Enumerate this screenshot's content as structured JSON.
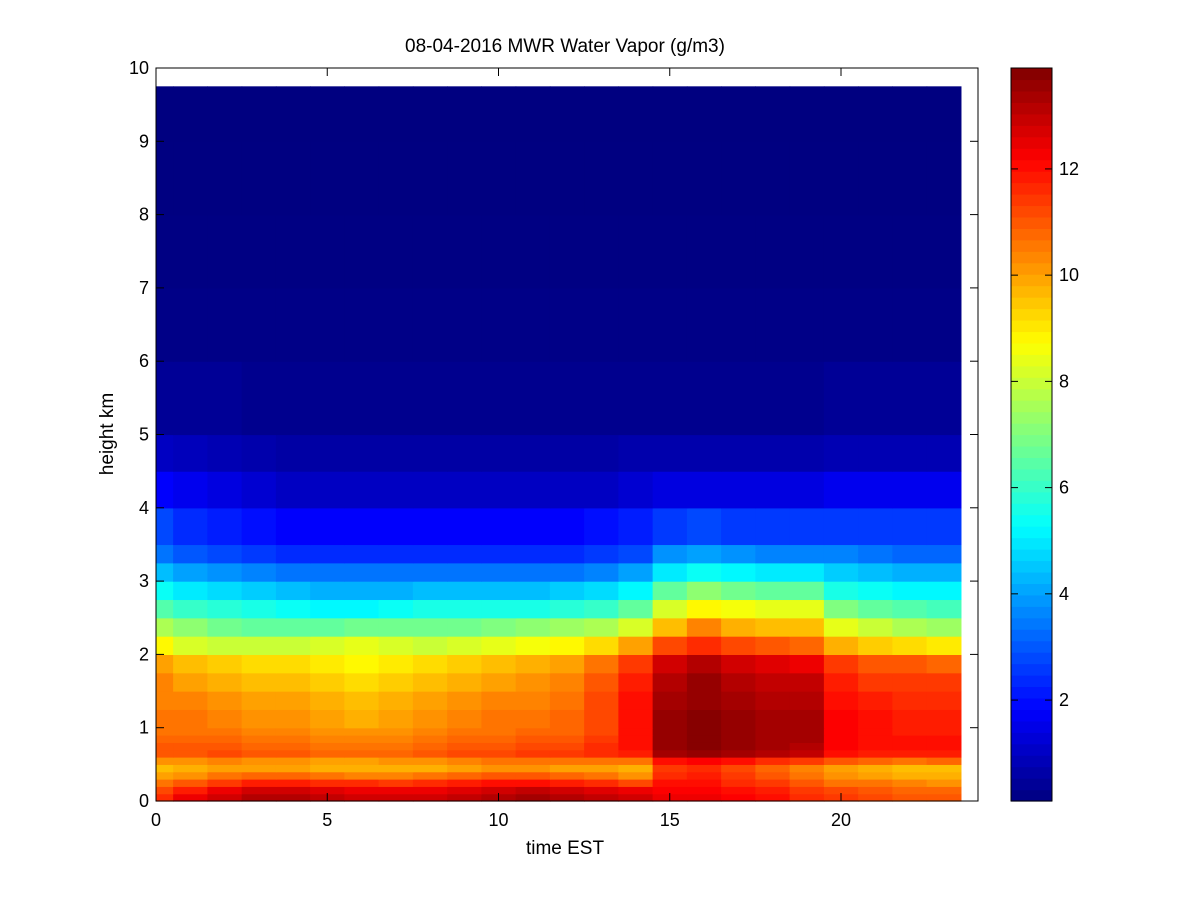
{
  "chart_data": {
    "type": "heatmap",
    "title": "08-04-2016 MWR Water Vapor (g/m3)",
    "xlabel": "time EST",
    "ylabel": "height km",
    "xlim": [
      0,
      24
    ],
    "ylim": [
      0,
      10
    ],
    "x_ticks": [
      0,
      5,
      10,
      15,
      20
    ],
    "y_ticks": [
      0,
      1,
      2,
      3,
      4,
      5,
      6,
      7,
      8,
      9,
      10
    ],
    "colorbar": {
      "colormap": "jet",
      "range": [
        0.1,
        13.9
      ],
      "ticks": [
        2,
        4,
        6,
        8,
        10,
        12
      ]
    },
    "data_extent": {
      "x": [
        0,
        23.5
      ],
      "y": [
        0,
        9.75
      ]
    },
    "x": [
      0,
      1,
      2,
      3,
      4,
      5,
      6,
      7,
      8,
      9,
      10,
      11,
      12,
      13,
      14,
      15,
      16,
      17,
      18,
      19,
      20,
      21,
      22,
      23
    ],
    "height_levels": [
      0.0,
      0.1,
      0.2,
      0.3,
      0.4,
      0.5,
      0.6,
      0.7,
      0.8,
      0.9,
      1.0,
      1.25,
      1.5,
      1.75,
      2.0,
      2.25,
      2.5,
      2.75,
      3.0,
      3.25,
      3.5,
      4.0,
      4.5,
      5.0,
      6.0,
      7.0,
      8.0,
      9.0,
      9.75
    ],
    "values": [
      [
        11.6,
        12.4,
        12.8,
        13.2,
        13.2,
        13.0,
        12.8,
        12.8,
        12.8,
        13.0,
        13.2,
        13.4,
        13.2,
        13.0,
        12.8,
        12.4,
        12.4,
        12.2,
        12.0,
        11.6,
        11.4,
        11.2,
        11.0,
        11.0
      ],
      [
        11.2,
        11.8,
        12.4,
        12.8,
        12.8,
        12.6,
        12.4,
        12.4,
        12.4,
        12.6,
        12.8,
        13.0,
        12.8,
        12.6,
        12.4,
        12.2,
        12.2,
        12.0,
        11.8,
        11.4,
        11.2,
        11.0,
        10.8,
        10.8
      ],
      [
        10.6,
        11.0,
        11.4,
        11.8,
        11.8,
        11.6,
        11.6,
        11.4,
        11.6,
        11.8,
        12.0,
        12.0,
        11.8,
        11.6,
        11.2,
        12.0,
        12.0,
        11.6,
        11.4,
        11.0,
        10.6,
        10.6,
        10.4,
        10.2
      ],
      [
        10.0,
        10.2,
        10.6,
        10.8,
        10.8,
        10.6,
        10.4,
        10.4,
        10.6,
        10.8,
        11.0,
        11.0,
        10.8,
        10.6,
        10.2,
        11.6,
        11.8,
        11.4,
        11.0,
        10.6,
        10.2,
        10.0,
        9.8,
        9.8
      ],
      [
        9.6,
        9.8,
        10.0,
        10.0,
        10.0,
        9.8,
        9.8,
        9.8,
        9.8,
        10.0,
        10.2,
        10.2,
        10.0,
        10.0,
        9.8,
        11.4,
        11.6,
        11.2,
        10.8,
        10.4,
        10.0,
        9.8,
        9.6,
        9.6
      ],
      [
        10.2,
        10.2,
        10.4,
        10.2,
        10.2,
        10.0,
        10.0,
        10.2,
        10.2,
        10.4,
        10.6,
        10.6,
        10.6,
        10.6,
        10.6,
        12.0,
        12.2,
        12.0,
        11.6,
        11.4,
        11.0,
        10.8,
        10.6,
        10.8
      ],
      [
        11.0,
        11.0,
        11.2,
        11.0,
        11.0,
        10.8,
        10.8,
        10.8,
        11.0,
        11.2,
        11.2,
        11.4,
        11.4,
        11.6,
        11.8,
        13.4,
        13.6,
        13.4,
        13.2,
        13.0,
        12.0,
        11.8,
        11.8,
        11.8
      ],
      [
        11.0,
        11.0,
        11.0,
        10.8,
        10.8,
        10.6,
        10.6,
        10.6,
        10.8,
        11.0,
        11.0,
        11.2,
        11.2,
        11.6,
        12.0,
        13.6,
        13.8,
        13.6,
        13.4,
        13.2,
        12.2,
        12.0,
        12.0,
        12.0
      ],
      [
        10.8,
        10.8,
        10.8,
        10.6,
        10.6,
        10.4,
        10.4,
        10.4,
        10.6,
        10.8,
        10.8,
        11.0,
        11.0,
        11.4,
        12.0,
        13.6,
        13.8,
        13.6,
        13.4,
        13.4,
        12.2,
        12.0,
        12.0,
        12.0
      ],
      [
        10.6,
        10.6,
        10.6,
        10.4,
        10.4,
        10.2,
        10.2,
        10.2,
        10.4,
        10.6,
        10.6,
        10.8,
        10.8,
        11.2,
        12.0,
        13.6,
        13.8,
        13.6,
        13.4,
        13.4,
        12.2,
        12.0,
        11.8,
        11.8
      ],
      [
        10.6,
        10.6,
        10.4,
        10.2,
        10.2,
        10.0,
        9.8,
        10.0,
        10.2,
        10.4,
        10.6,
        10.6,
        10.8,
        11.2,
        12.0,
        13.6,
        13.8,
        13.6,
        13.4,
        13.4,
        12.2,
        12.0,
        11.8,
        11.8
      ],
      [
        10.4,
        10.4,
        10.2,
        10.0,
        10.0,
        9.8,
        9.6,
        9.8,
        10.0,
        10.2,
        10.4,
        10.4,
        10.6,
        11.2,
        12.0,
        13.4,
        13.6,
        13.4,
        13.2,
        13.2,
        12.0,
        11.8,
        11.6,
        11.6
      ],
      [
        10.4,
        10.0,
        9.8,
        9.6,
        9.6,
        9.4,
        9.2,
        9.4,
        9.6,
        9.8,
        10.0,
        10.2,
        10.4,
        11.0,
        11.8,
        13.2,
        13.6,
        13.2,
        13.0,
        13.0,
        11.8,
        11.4,
        11.4,
        11.4
      ],
      [
        10.0,
        9.6,
        9.4,
        9.2,
        9.2,
        9.0,
        8.8,
        9.0,
        9.2,
        9.4,
        9.6,
        9.8,
        10.0,
        10.6,
        11.4,
        12.8,
        13.2,
        12.8,
        12.6,
        12.4,
        11.4,
        11.0,
        11.0,
        10.8
      ],
      [
        8.8,
        8.2,
        8.0,
        8.0,
        8.0,
        8.2,
        8.4,
        8.2,
        8.0,
        8.2,
        8.4,
        8.6,
        8.8,
        9.2,
        10.0,
        11.2,
        11.6,
        11.2,
        11.0,
        10.8,
        9.8,
        9.4,
        9.2,
        9.0
      ],
      [
        7.6,
        7.2,
        6.8,
        6.6,
        6.6,
        6.6,
        6.8,
        6.8,
        6.8,
        6.8,
        7.0,
        7.2,
        7.4,
        7.6,
        8.2,
        9.6,
        10.4,
        9.8,
        9.6,
        9.6,
        8.4,
        8.0,
        7.6,
        7.4
      ],
      [
        6.4,
        6.0,
        5.8,
        5.6,
        5.4,
        5.2,
        5.2,
        5.4,
        5.6,
        5.6,
        5.6,
        5.6,
        5.8,
        6.0,
        6.6,
        8.2,
        8.8,
        8.6,
        8.4,
        8.4,
        7.0,
        6.6,
        6.4,
        6.2
      ],
      [
        5.4,
        5.0,
        4.8,
        4.6,
        4.4,
        4.2,
        4.2,
        4.2,
        4.4,
        4.4,
        4.4,
        4.4,
        4.6,
        4.8,
        5.2,
        6.6,
        7.2,
        6.8,
        6.6,
        6.6,
        5.6,
        5.4,
        5.2,
        5.2
      ],
      [
        4.4,
        4.0,
        3.8,
        3.6,
        3.4,
        3.4,
        3.4,
        3.4,
        3.4,
        3.4,
        3.4,
        3.4,
        3.4,
        3.6,
        4.0,
        5.0,
        5.4,
        5.2,
        5.0,
        5.0,
        4.6,
        4.4,
        4.2,
        4.2
      ],
      [
        3.4,
        3.0,
        2.8,
        2.6,
        2.4,
        2.4,
        2.4,
        2.4,
        2.4,
        2.4,
        2.4,
        2.4,
        2.4,
        2.6,
        2.8,
        3.8,
        4.0,
        3.8,
        3.6,
        3.6,
        3.6,
        3.4,
        3.2,
        3.2
      ],
      [
        2.8,
        2.4,
        2.2,
        2.0,
        1.8,
        1.8,
        1.8,
        1.8,
        1.8,
        1.8,
        1.8,
        1.8,
        1.8,
        2.0,
        2.2,
        2.6,
        2.8,
        2.6,
        2.6,
        2.6,
        2.6,
        2.6,
        2.6,
        2.6
      ],
      [
        1.8,
        1.6,
        1.4,
        1.2,
        1.0,
        1.0,
        1.0,
        1.0,
        1.0,
        1.0,
        1.0,
        1.0,
        1.0,
        1.0,
        1.2,
        1.4,
        1.4,
        1.4,
        1.4,
        1.4,
        1.6,
        1.6,
        1.6,
        1.6
      ],
      [
        1.0,
        0.9,
        0.8,
        0.7,
        0.6,
        0.6,
        0.6,
        0.6,
        0.6,
        0.6,
        0.6,
        0.6,
        0.6,
        0.6,
        0.7,
        0.7,
        0.7,
        0.7,
        0.7,
        0.7,
        0.8,
        0.8,
        0.8,
        0.8
      ],
      [
        0.4,
        0.4,
        0.4,
        0.3,
        0.3,
        0.3,
        0.3,
        0.3,
        0.3,
        0.3,
        0.3,
        0.3,
        0.3,
        0.3,
        0.3,
        0.3,
        0.3,
        0.3,
        0.3,
        0.3,
        0.4,
        0.4,
        0.4,
        0.4
      ],
      [
        0.2,
        0.2,
        0.2,
        0.2,
        0.2,
        0.2,
        0.2,
        0.2,
        0.2,
        0.2,
        0.2,
        0.2,
        0.2,
        0.2,
        0.2,
        0.2,
        0.2,
        0.2,
        0.2,
        0.2,
        0.2,
        0.2,
        0.2,
        0.2
      ],
      [
        0.15,
        0.15,
        0.15,
        0.15,
        0.15,
        0.15,
        0.15,
        0.15,
        0.15,
        0.15,
        0.15,
        0.15,
        0.15,
        0.15,
        0.15,
        0.15,
        0.15,
        0.15,
        0.15,
        0.15,
        0.15,
        0.15,
        0.15,
        0.15
      ],
      [
        0.12,
        0.12,
        0.12,
        0.12,
        0.12,
        0.12,
        0.12,
        0.12,
        0.12,
        0.12,
        0.12,
        0.12,
        0.12,
        0.12,
        0.12,
        0.12,
        0.12,
        0.12,
        0.12,
        0.12,
        0.12,
        0.12,
        0.12,
        0.12
      ],
      [
        0.1,
        0.1,
        0.1,
        0.1,
        0.1,
        0.1,
        0.1,
        0.1,
        0.1,
        0.1,
        0.1,
        0.1,
        0.1,
        0.1,
        0.1,
        0.1,
        0.1,
        0.1,
        0.1,
        0.1,
        0.1,
        0.1,
        0.1,
        0.1
      ]
    ]
  }
}
